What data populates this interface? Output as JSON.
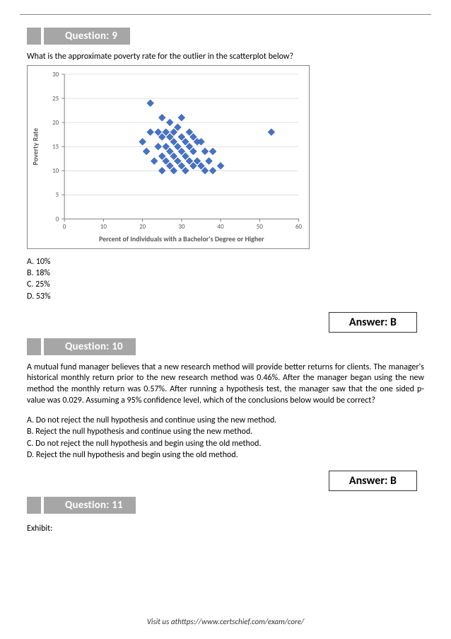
{
  "q9": {
    "header": "Question: 9",
    "text": "What is the approximate poverty rate for the outlier in the scatterplot below?",
    "options": {
      "a": "A. 10%",
      "b": "B. 18%",
      "c": "C. 25%",
      "d": "D. 53%"
    },
    "answer": "Answer: B"
  },
  "chart": {
    "type": "scatter",
    "xlabel": "Percent of Individuals with a Bachelor's Degree or Higher",
    "ylabel": "Poverty Rate",
    "xlim": [
      0,
      60
    ],
    "ylim": [
      0,
      30
    ],
    "xticks": [
      0,
      10,
      20,
      30,
      40,
      50,
      60
    ],
    "yticks": [
      0,
      5,
      10,
      15,
      20,
      25,
      30
    ],
    "xtick_labels": [
      "0",
      "10",
      "20",
      "30",
      "40",
      "50",
      "60"
    ],
    "ytick_labels": [
      "0",
      "5",
      "10",
      "15",
      "20",
      "25",
      "30"
    ],
    "marker_color": "#4472c4",
    "marker_stroke": "#2f5597",
    "grid_color": "#c0c0c0",
    "bg_color": "#ffffff",
    "axis_color": "#808080",
    "label_color": "#595959",
    "label_fontsize": 10,
    "tick_fontsize": 9,
    "marker_size": 5,
    "points": [
      [
        20,
        16
      ],
      [
        21,
        14
      ],
      [
        22,
        24
      ],
      [
        22,
        18
      ],
      [
        23,
        12
      ],
      [
        24,
        18
      ],
      [
        24,
        15
      ],
      [
        25,
        21
      ],
      [
        25,
        17
      ],
      [
        25,
        13
      ],
      [
        25,
        10
      ],
      [
        26,
        18
      ],
      [
        26,
        15
      ],
      [
        26,
        12
      ],
      [
        27,
        20
      ],
      [
        27,
        17
      ],
      [
        27,
        14
      ],
      [
        27,
        11
      ],
      [
        28,
        18
      ],
      [
        28,
        16
      ],
      [
        28,
        13
      ],
      [
        28,
        10
      ],
      [
        29,
        19
      ],
      [
        29,
        15
      ],
      [
        29,
        12
      ],
      [
        30,
        21
      ],
      [
        30,
        17
      ],
      [
        30,
        14
      ],
      [
        30,
        11
      ],
      [
        31,
        16
      ],
      [
        31,
        13
      ],
      [
        31,
        10
      ],
      [
        32,
        18
      ],
      [
        32,
        15
      ],
      [
        32,
        12
      ],
      [
        33,
        17
      ],
      [
        33,
        14
      ],
      [
        33,
        11
      ],
      [
        34,
        16
      ],
      [
        34,
        12
      ],
      [
        35,
        16
      ],
      [
        35,
        11
      ],
      [
        36,
        14
      ],
      [
        36,
        10
      ],
      [
        37,
        12
      ],
      [
        38,
        14
      ],
      [
        38,
        10
      ],
      [
        40,
        11
      ],
      [
        53,
        18
      ]
    ]
  },
  "q10": {
    "header": "Question: 10",
    "body": "A mutual fund manager believes that a new research method will provide better returns for clients. The manager's historical monthly return prior to the new research method was 0.46%. After the manager began using the new method the monthly return was 0.57%. After running a hypothesis test, the manager saw that the one sided p-value was 0.029. Assuming a 95% confidence level, which of the conclusions below would be correct?",
    "options": {
      "a": "A. Do not reject the null hypothesis and continue using the new method.",
      "b": "B. Reject the null hypothesis and continue using the new method.",
      "c": "C. Do not reject the null hypothesis and begin using the old method.",
      "d": "D. Reject the null hypothesis and begin using the old method."
    },
    "answer": "Answer: B"
  },
  "q11": {
    "header": "Question: 11",
    "exhibit": "Exhibit:"
  },
  "footer": "Visit us athttps://www.certschief.com/exam/core/"
}
